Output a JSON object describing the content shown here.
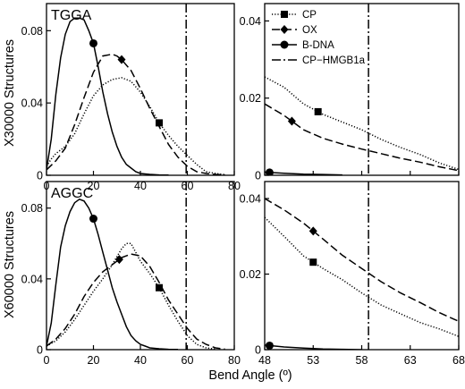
{
  "labels": {
    "x_axis": "Bend Angle (º)",
    "y_axis_top": "X30000 Structures",
    "y_axis_bottom": "X60000 Structures",
    "panel_top": "TGGA",
    "panel_bottom": "AGGC"
  },
  "legend": [
    {
      "name": "CP",
      "marker": "square",
      "dash": "1.2 2"
    },
    {
      "name": "OX",
      "marker": "diamond",
      "dash": "9 4"
    },
    {
      "name": "B-DNA",
      "marker": "circle",
      "dash": ""
    },
    {
      "name": "CP−HMGB1a",
      "marker": "none",
      "dash": "10 3 2 3"
    }
  ],
  "chart_data": [
    {
      "type": "line",
      "panel": "top-left",
      "title": "TGGA",
      "xlim": [
        0,
        80
      ],
      "ylim": [
        0,
        0.095
      ],
      "xticks": [
        "0",
        "20",
        "40",
        "60",
        "80"
      ],
      "yticks": [
        {
          "v": 0,
          "t": "0"
        },
        {
          "v": 0.04,
          "t": "0.04"
        },
        {
          "v": 0.08,
          "t": "0.08"
        }
      ],
      "vline": 59.5,
      "series": [
        {
          "name": "B-DNA",
          "x": [
            0,
            2,
            4,
            6,
            8,
            10,
            12,
            14,
            16,
            18,
            20,
            22,
            24,
            26,
            28,
            30,
            32,
            34,
            36,
            38,
            40,
            44,
            48,
            52
          ],
          "y": [
            0.003,
            0.02,
            0.045,
            0.065,
            0.078,
            0.085,
            0.087,
            0.087,
            0.086,
            0.08,
            0.073,
            0.06,
            0.046,
            0.034,
            0.024,
            0.016,
            0.01,
            0.006,
            0.004,
            0.002,
            0.001,
            0.0005,
            0.0002,
            0.0001
          ],
          "marker_at": 20
        },
        {
          "name": "OX",
          "x": [
            0,
            4,
            8,
            12,
            16,
            20,
            24,
            28,
            30,
            32,
            36,
            40,
            44,
            48,
            52,
            56,
            60,
            64,
            68,
            72,
            76
          ],
          "y": [
            0.003,
            0.008,
            0.015,
            0.028,
            0.043,
            0.057,
            0.066,
            0.067,
            0.066,
            0.064,
            0.058,
            0.048,
            0.037,
            0.027,
            0.017,
            0.01,
            0.005,
            0.002,
            0.001,
            0.0005,
            0.0002
          ],
          "marker_at": 32
        },
        {
          "name": "CP",
          "x": [
            0,
            2,
            4,
            8,
            12,
            16,
            20,
            24,
            28,
            32,
            36,
            40,
            44,
            48,
            52,
            56,
            60,
            64,
            68,
            72,
            76
          ],
          "y": [
            0.005,
            0.009,
            0.012,
            0.016,
            0.023,
            0.034,
            0.044,
            0.05,
            0.053,
            0.054,
            0.052,
            0.046,
            0.038,
            0.029,
            0.022,
            0.016,
            0.011,
            0.006,
            0.002,
            0.001,
            0.0004
          ],
          "marker_at": 48
        }
      ]
    },
    {
      "type": "line",
      "panel": "top-right",
      "xlim": [
        48,
        68
      ],
      "ylim": [
        0,
        0.0445
      ],
      "xticks": [],
      "yticks": [
        {
          "v": 0,
          "t": "0"
        },
        {
          "v": 0.02,
          "t": "0.02"
        },
        {
          "v": 0.04,
          "t": "0.04"
        }
      ],
      "vline": 58.7,
      "series": [
        {
          "name": "B-DNA",
          "x": [
            48,
            50,
            52,
            54,
            56
          ],
          "y": [
            0.0008,
            0.0005,
            0.0003,
            0.0002,
            0.0001
          ],
          "marker_at": 48.5
        },
        {
          "name": "OX",
          "x": [
            48,
            50,
            52,
            54,
            56,
            58,
            60,
            62,
            64,
            66,
            68
          ],
          "y": [
            0.0185,
            0.0155,
            0.0118,
            0.0096,
            0.0081,
            0.0068,
            0.0056,
            0.0044,
            0.0034,
            0.0022,
            0.0012
          ],
          "marker_at": 50.8
        },
        {
          "name": "CP",
          "x": [
            48,
            50,
            52,
            54,
            56,
            58,
            60,
            62,
            64,
            66,
            68
          ],
          "y": [
            0.0255,
            0.0228,
            0.0185,
            0.0158,
            0.0138,
            0.0118,
            0.0093,
            0.0072,
            0.0054,
            0.0032,
            0.0015
          ],
          "marker_at": 53.5
        }
      ]
    },
    {
      "type": "line",
      "panel": "bottom-left",
      "title": "AGGC",
      "xlim": [
        0,
        80
      ],
      "ylim": [
        0,
        0.095
      ],
      "xticks": [
        "0",
        "20",
        "40",
        "60",
        "80"
      ],
      "yticks": [
        {
          "v": 0,
          "t": "0"
        },
        {
          "v": 0.04,
          "t": "0.04"
        },
        {
          "v": 0.08,
          "t": "0.08"
        }
      ],
      "vline": 59.5,
      "series": [
        {
          "name": "B-DNA",
          "x": [
            0,
            2,
            4,
            6,
            8,
            10,
            12,
            14,
            16,
            18,
            20,
            22,
            24,
            26,
            28,
            30,
            32,
            34,
            36,
            38,
            40,
            42,
            44,
            48,
            52,
            56
          ],
          "y": [
            0.002,
            0.015,
            0.037,
            0.058,
            0.07,
            0.078,
            0.083,
            0.085,
            0.084,
            0.08,
            0.074,
            0.065,
            0.055,
            0.045,
            0.035,
            0.027,
            0.02,
            0.013,
            0.008,
            0.005,
            0.003,
            0.002,
            0.001,
            0.0005,
            0.0002,
            0.0001
          ],
          "marker_at": 20
        },
        {
          "name": "OX",
          "x": [
            0,
            4,
            8,
            12,
            16,
            20,
            24,
            28,
            32,
            36,
            40,
            44,
            48,
            52,
            56,
            60,
            64,
            68,
            72,
            76
          ],
          "y": [
            0.002,
            0.006,
            0.012,
            0.02,
            0.03,
            0.038,
            0.044,
            0.048,
            0.052,
            0.054,
            0.053,
            0.047,
            0.038,
            0.028,
            0.02,
            0.012,
            0.006,
            0.003,
            0.001,
            0.0003
          ],
          "marker_at": 31
        },
        {
          "name": "CP",
          "x": [
            0,
            4,
            8,
            12,
            16,
            20,
            24,
            28,
            32,
            34,
            36,
            38,
            40,
            44,
            48,
            52,
            56,
            60,
            64,
            68,
            72
          ],
          "y": [
            0.002,
            0.005,
            0.01,
            0.017,
            0.025,
            0.033,
            0.04,
            0.048,
            0.057,
            0.06,
            0.06,
            0.055,
            0.05,
            0.043,
            0.035,
            0.025,
            0.016,
            0.008,
            0.003,
            0.001,
            0.0003
          ],
          "marker_at": 48
        }
      ]
    },
    {
      "type": "line",
      "panel": "bottom-right",
      "xlim": [
        48,
        68
      ],
      "ylim": [
        0,
        0.0445
      ],
      "xticks": [
        "48",
        "53",
        "58",
        "63",
        "68"
      ],
      "yticks": [
        {
          "v": 0,
          "t": "0"
        },
        {
          "v": 0.02,
          "t": "0.02"
        },
        {
          "v": 0.04,
          "t": "0.04"
        }
      ],
      "vline": 58.7,
      "series": [
        {
          "name": "B-DNA",
          "x": [
            48,
            50,
            52,
            54,
            56,
            58
          ],
          "y": [
            0.0012,
            0.0007,
            0.0004,
            0.0002,
            0.0001,
            0.0
          ],
          "marker_at": 48.5
        },
        {
          "name": "OX",
          "x": [
            48,
            50,
            52,
            54,
            56,
            58,
            60,
            62,
            64,
            66,
            68
          ],
          "y": [
            0.04,
            0.037,
            0.0335,
            0.0293,
            0.025,
            0.0215,
            0.018,
            0.015,
            0.0125,
            0.0098,
            0.0075
          ],
          "marker_at": 53
        },
        {
          "name": "CP",
          "x": [
            48,
            50,
            52,
            54,
            56,
            58,
            60,
            62,
            64,
            66,
            68
          ],
          "y": [
            0.035,
            0.03,
            0.0248,
            0.0215,
            0.0185,
            0.015,
            0.0118,
            0.0095,
            0.0072,
            0.0055,
            0.0035
          ],
          "marker_at": 53
        }
      ]
    }
  ]
}
